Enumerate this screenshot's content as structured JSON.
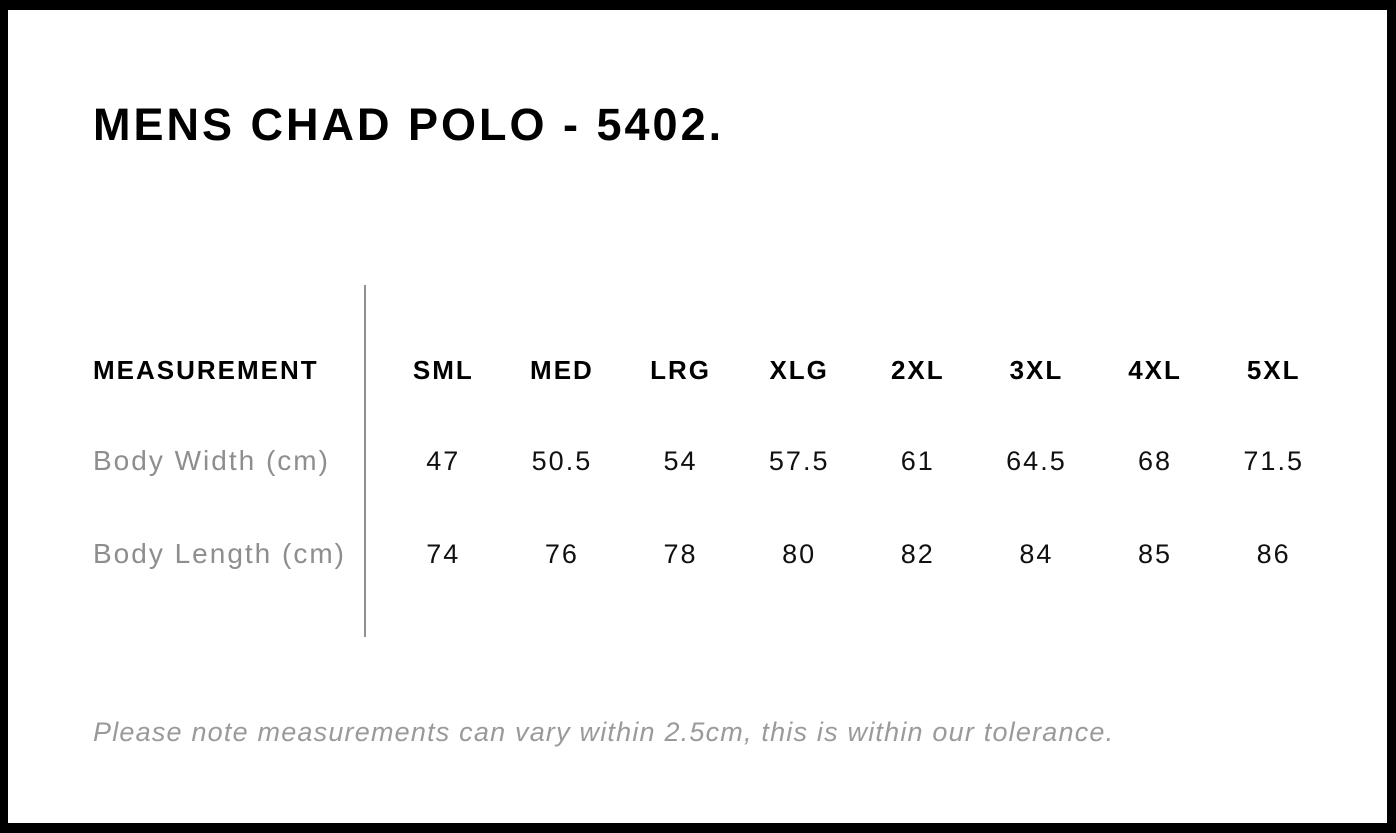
{
  "title": "MENS CHAD POLO - 5402.",
  "table": {
    "measurement_header": "MEASUREMENT",
    "sizes": [
      "SML",
      "MED",
      "LRG",
      "XLG",
      "2XL",
      "3XL",
      "4XL",
      "5XL"
    ],
    "rows": [
      {
        "label": "Body Width (cm)",
        "values": [
          "47",
          "50.5",
          "54",
          "57.5",
          "61",
          "64.5",
          "68",
          "71.5"
        ]
      },
      {
        "label": "Body Length (cm)",
        "values": [
          "74",
          "76",
          "78",
          "80",
          "82",
          "84",
          "85",
          "86"
        ]
      }
    ]
  },
  "note": "Please note measurements can vary within 2.5cm, this is within our tolerance.",
  "colors": {
    "frame": "#000000",
    "background": "#ffffff",
    "heading_text": "#000000",
    "value_text": "#101010",
    "muted_label": "#8e8e8e",
    "note_text": "#9a9a9a",
    "divider": "#8f8f8f"
  }
}
